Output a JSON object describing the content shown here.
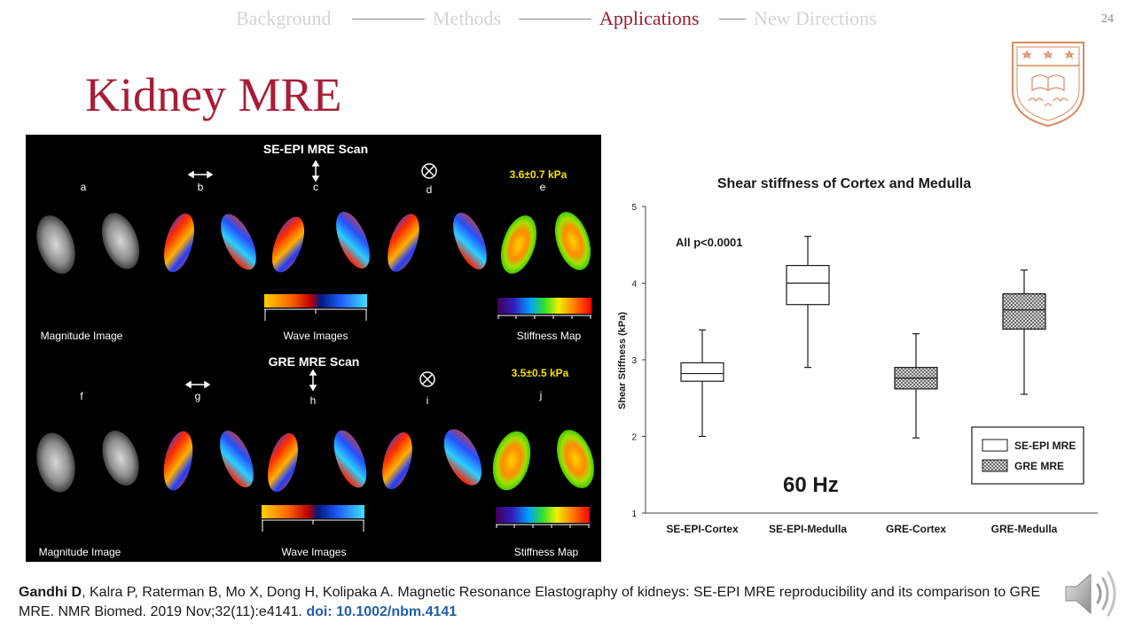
{
  "nav": {
    "items": [
      {
        "label": "Background",
        "state": "muted"
      },
      {
        "label": "Methods",
        "state": "muted"
      },
      {
        "label": "Applications",
        "state": "active"
      },
      {
        "label": "New Directions",
        "state": "muted"
      }
    ],
    "colors": {
      "active": "#9b1c2e",
      "muted": "#d4d4d4"
    }
  },
  "page_number": "24",
  "slide_title": "Kidney MRE",
  "panel": {
    "se_title": "SE-EPI MRE Scan",
    "gre_title": "GRE MRE Scan",
    "se_stiffness": "3.6±0.7 kPa",
    "gre_stiffness": "3.5±0.5 kPa",
    "letters_top": [
      "a",
      "b",
      "c",
      "d",
      "e"
    ],
    "letters_bottom": [
      "f",
      "g",
      "h",
      "i",
      "j"
    ],
    "magnitude_label": "Magnitude Image",
    "wave_label": "Wave Images",
    "stiffness_label": "Stiffness Map"
  },
  "chart_data": {
    "type": "box",
    "title": "Shear stiffness of Cortex and Medulla",
    "ylabel": "Shear Stiffness (kPa)",
    "xlabel": "",
    "ylim": [
      1,
      5
    ],
    "yticks": [
      1,
      2,
      3,
      4,
      5
    ],
    "grid": false,
    "annotation": "All p<0.0001",
    "frequency_label": "60 Hz",
    "categories": [
      "SE-EPI-Cortex",
      "SE-EPI-Medulla",
      "GRE-Cortex",
      "GRE-Medulla"
    ],
    "series": [
      {
        "name": "SE-EPI MRE",
        "fill": "plain",
        "boxes": [
          {
            "category": "SE-EPI-Cortex",
            "min": 2.0,
            "q1": 2.72,
            "median": 2.82,
            "q3": 2.96,
            "max": 3.39
          },
          {
            "category": "SE-EPI-Medulla",
            "min": 2.9,
            "q1": 3.72,
            "median": 4.0,
            "q3": 4.23,
            "max": 4.61
          }
        ]
      },
      {
        "name": "GRE MRE",
        "fill": "hatched",
        "boxes": [
          {
            "category": "GRE-Cortex",
            "min": 1.98,
            "q1": 2.62,
            "median": 2.76,
            "q3": 2.9,
            "max": 3.34
          },
          {
            "category": "GRE-Medulla",
            "min": 2.55,
            "q1": 3.4,
            "median": 3.65,
            "q3": 3.86,
            "max": 4.17
          }
        ]
      }
    ],
    "legend_position": "bottom-right"
  },
  "citation": {
    "lead_author": "Gandhi D",
    "rest": ", Kalra P, Raterman B, Mo X, Dong H, Kolipaka A. Magnetic Resonance Elastography of kidneys: SE-EPI MRE reproducibility and its comparison to GRE MRE. NMR Biomed. 2019 Nov;32(11):e4141.",
    "doi": "doi: 10.1002/nbm.4141"
  }
}
